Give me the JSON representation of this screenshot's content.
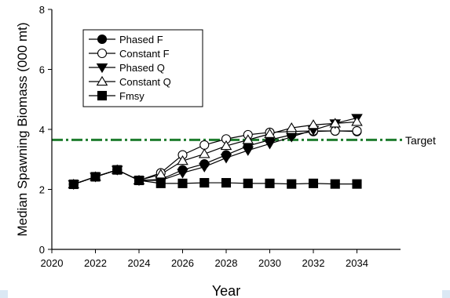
{
  "chart_data": {
    "type": "line",
    "xlabel": "Year",
    "ylabel": "Median Spawning Biomass (000 mt)",
    "xlim": [
      2020,
      2036
    ],
    "ylim": [
      0,
      8
    ],
    "xticks": [
      "2020",
      "2022",
      "2024",
      "2026",
      "2028",
      "2030",
      "2032",
      "2034"
    ],
    "yticks": [
      "0",
      "2",
      "4",
      "6",
      "8"
    ],
    "grid": false,
    "legend_position": "top-left",
    "target": {
      "label": "Target",
      "value": 3.65,
      "color": "#1e7d2e"
    },
    "series": [
      {
        "name": "Phased F",
        "marker": "circle",
        "filled": true,
        "x": [
          2021,
          2022,
          2023,
          2024,
          2025,
          2026,
          2027,
          2028,
          2029,
          2030,
          2031,
          2032,
          2033,
          2034
        ],
        "values": [
          2.17,
          2.42,
          2.65,
          2.3,
          2.33,
          2.65,
          2.85,
          3.15,
          3.45,
          3.65,
          3.82,
          3.93,
          3.95,
          3.93
        ]
      },
      {
        "name": "Constant F",
        "marker": "circle",
        "filled": false,
        "x": [
          2021,
          2022,
          2023,
          2024,
          2025,
          2026,
          2027,
          2028,
          2029,
          2030,
          2031,
          2032,
          2033,
          2034
        ],
        "values": [
          2.17,
          2.42,
          2.65,
          2.3,
          2.55,
          3.15,
          3.48,
          3.68,
          3.82,
          3.9,
          3.93,
          3.95,
          3.95,
          3.95
        ]
      },
      {
        "name": "Phased Q",
        "marker": "triangle-down",
        "filled": true,
        "x": [
          2021,
          2022,
          2023,
          2024,
          2025,
          2026,
          2027,
          2028,
          2029,
          2030,
          2031,
          2032,
          2033,
          2034
        ],
        "values": [
          2.17,
          2.42,
          2.65,
          2.3,
          2.3,
          2.55,
          2.75,
          3.05,
          3.3,
          3.52,
          3.75,
          3.98,
          4.2,
          4.38
        ]
      },
      {
        "name": "Constant Q",
        "marker": "triangle-up",
        "filled": false,
        "x": [
          2021,
          2022,
          2023,
          2024,
          2025,
          2026,
          2027,
          2028,
          2029,
          2030,
          2031,
          2032,
          2033,
          2034
        ],
        "values": [
          2.17,
          2.42,
          2.65,
          2.3,
          2.5,
          2.95,
          3.18,
          3.45,
          3.65,
          3.85,
          4.05,
          4.15,
          4.2,
          4.25
        ]
      },
      {
        "name": "Fmsy",
        "marker": "square",
        "filled": true,
        "x": [
          2021,
          2022,
          2023,
          2024,
          2025,
          2026,
          2027,
          2028,
          2029,
          2030,
          2031,
          2032,
          2033,
          2034
        ],
        "values": [
          2.17,
          2.42,
          2.65,
          2.3,
          2.2,
          2.2,
          2.22,
          2.22,
          2.2,
          2.2,
          2.18,
          2.2,
          2.18,
          2.18
        ]
      }
    ]
  }
}
